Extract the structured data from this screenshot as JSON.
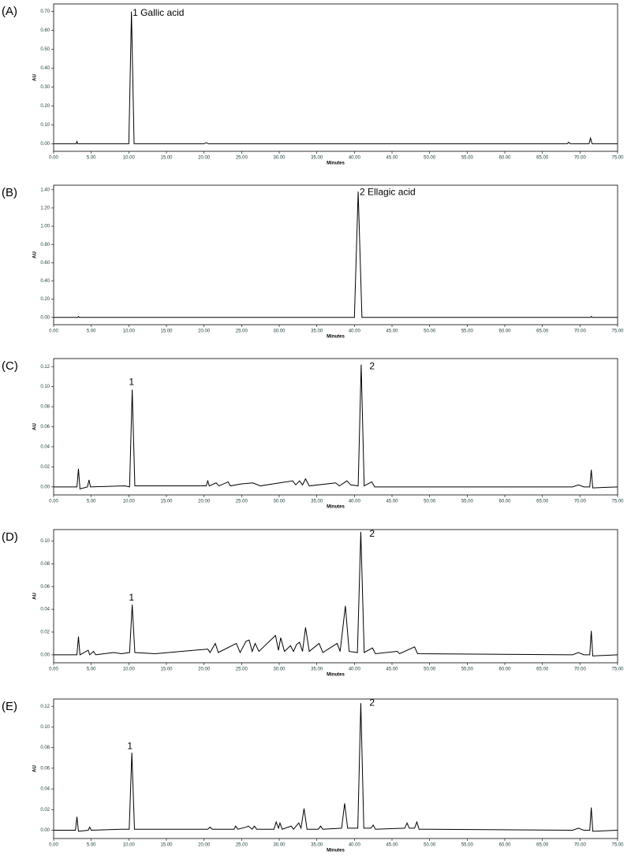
{
  "chart_data": [
    {
      "type": "line",
      "label": "(A)",
      "x_label": "Minutes",
      "y_label": "AU",
      "color": "#000000",
      "xlim": [
        0,
        75
      ],
      "ylim": [
        -0.04,
        0.74
      ],
      "xticks": [
        {
          "value": 0,
          "label": "0.00"
        },
        {
          "value": 5,
          "label": "5.00"
        },
        {
          "value": 10,
          "label": "10.00"
        },
        {
          "value": 15,
          "label": "15.00"
        },
        {
          "value": 20,
          "label": "20.00"
        },
        {
          "value": 25,
          "label": "25.00"
        },
        {
          "value": 30,
          "label": "30.00"
        },
        {
          "value": 35,
          "label": "35.00"
        },
        {
          "value": 40,
          "label": "40.00"
        },
        {
          "value": 45,
          "label": "45.00"
        },
        {
          "value": 50,
          "label": "50.00"
        },
        {
          "value": 55,
          "label": "55.00"
        },
        {
          "value": 60,
          "label": "60.00"
        },
        {
          "value": 65,
          "label": "65.00"
        },
        {
          "value": 70,
          "label": "70.00"
        },
        {
          "value": 75,
          "label": "75.00"
        }
      ],
      "yticks": [
        {
          "value": 0,
          "label": "0.00"
        },
        {
          "value": 0.1,
          "label": "0.10"
        },
        {
          "value": 0.2,
          "label": "0.20"
        },
        {
          "value": 0.3,
          "label": "0.30"
        },
        {
          "value": 0.4,
          "label": "0.40"
        },
        {
          "value": 0.5,
          "label": "0.50"
        },
        {
          "value": 0.6,
          "label": "0.60"
        },
        {
          "value": 0.7,
          "label": "0.70"
        }
      ],
      "x": [
        0,
        3.0,
        3.1,
        3.2,
        10.0,
        10.35,
        10.7,
        20.0,
        20.3,
        20.6,
        68.3,
        68.5,
        68.7,
        71.2,
        71.4,
        71.6,
        75
      ],
      "values": [
        0,
        0,
        0.012,
        0,
        0,
        0.7,
        0,
        0,
        0.005,
        0,
        0,
        0.008,
        0,
        0,
        0.03,
        0,
        0
      ],
      "annotations": [
        {
          "text": "1 Gallic acid",
          "x": 10.5,
          "y": 0.69
        }
      ]
    },
    {
      "type": "line",
      "label": "(B)",
      "x_label": "Minutes",
      "y_label": "AU",
      "color": "#000000",
      "xlim": [
        0,
        75
      ],
      "ylim": [
        -0.08,
        1.45
      ],
      "xticks": [
        {
          "value": 0,
          "label": "0.00"
        },
        {
          "value": 5,
          "label": "5.00"
        },
        {
          "value": 10,
          "label": "10.00"
        },
        {
          "value": 15,
          "label": "15.00"
        },
        {
          "value": 20,
          "label": "20.00"
        },
        {
          "value": 25,
          "label": "25.00"
        },
        {
          "value": 30,
          "label": "30.00"
        },
        {
          "value": 35,
          "label": "35.00"
        },
        {
          "value": 40,
          "label": "40.00"
        },
        {
          "value": 45,
          "label": "45.00"
        },
        {
          "value": 50,
          "label": "50.00"
        },
        {
          "value": 55,
          "label": "55.00"
        },
        {
          "value": 60,
          "label": "60.00"
        },
        {
          "value": 65,
          "label": "65.00"
        },
        {
          "value": 70,
          "label": "70.00"
        },
        {
          "value": 75,
          "label": "75.00"
        }
      ],
      "yticks": [
        {
          "value": 0,
          "label": "0.00"
        },
        {
          "value": 0.2,
          "label": "0.20"
        },
        {
          "value": 0.4,
          "label": "0.40"
        },
        {
          "value": 0.6,
          "label": "0.60"
        },
        {
          "value": 0.8,
          "label": "0.80"
        },
        {
          "value": 1,
          "label": "1.00"
        },
        {
          "value": 1.2,
          "label": "1.20"
        },
        {
          "value": 1.4,
          "label": "1.40"
        }
      ],
      "x": [
        0,
        3.2,
        3.3,
        3.4,
        40.0,
        40.5,
        41.0,
        71.4,
        71.5,
        71.6,
        75
      ],
      "values": [
        0,
        0,
        0.01,
        0,
        0,
        1.38,
        0,
        0,
        0.01,
        0,
        0
      ],
      "annotations": [
        {
          "text": "2 Ellagic acid",
          "x": 40.7,
          "y": 1.37
        }
      ]
    },
    {
      "type": "line",
      "label": "(C)",
      "x_label": "Minutes",
      "y_label": "AU",
      "color": "#000000",
      "xlim": [
        0,
        75
      ],
      "ylim": [
        -0.008,
        0.128
      ],
      "xticks": [
        {
          "value": 0,
          "label": "0.00"
        },
        {
          "value": 5,
          "label": "5.00"
        },
        {
          "value": 10,
          "label": "10.00"
        },
        {
          "value": 15,
          "label": "15.00"
        },
        {
          "value": 20,
          "label": "20.00"
        },
        {
          "value": 25,
          "label": "25.00"
        },
        {
          "value": 30,
          "label": "30.00"
        },
        {
          "value": 35,
          "label": "35.00"
        },
        {
          "value": 40,
          "label": "40.00"
        },
        {
          "value": 45,
          "label": "45.00"
        },
        {
          "value": 50,
          "label": "50.00"
        },
        {
          "value": 55,
          "label": "55.00"
        },
        {
          "value": 60,
          "label": "60.00"
        },
        {
          "value": 65,
          "label": "65.00"
        },
        {
          "value": 70,
          "label": "70.00"
        },
        {
          "value": 75,
          "label": "75.00"
        }
      ],
      "yticks": [
        {
          "value": 0,
          "label": "0.00"
        },
        {
          "value": 0.02,
          "label": "0.02"
        },
        {
          "value": 0.04,
          "label": "0.04"
        },
        {
          "value": 0.06,
          "label": "0.06"
        },
        {
          "value": 0.08,
          "label": "0.08"
        },
        {
          "value": 0.1,
          "label": "0.10"
        },
        {
          "value": 0.12,
          "label": "0.12"
        }
      ],
      "x": [
        0,
        3.1,
        3.3,
        3.5,
        4.5,
        4.7,
        4.9,
        9.5,
        10.1,
        10.45,
        10.8,
        20.3,
        20.5,
        20.7,
        21.6,
        22,
        23.2,
        23.5,
        25,
        26.5,
        27.5,
        29.2,
        31.8,
        32.2,
        32.7,
        33.1,
        33.5,
        34,
        37.5,
        38,
        39,
        39.5,
        40.5,
        40.9,
        41.3,
        42.3,
        42.7,
        69,
        69.8,
        70.5,
        71.3,
        71.5,
        71.7,
        75
      ],
      "values": [
        0,
        0,
        0.018,
        -0.002,
        0,
        0.007,
        0,
        0.001,
        0,
        0.097,
        0.001,
        0.001,
        0.006,
        0.001,
        0.004,
        0.001,
        0.005,
        0.001,
        0.003,
        0.004,
        0.001,
        0.003,
        0.006,
        0.002,
        0.006,
        0.002,
        0.008,
        0.001,
        0.004,
        0.001,
        0.006,
        0.002,
        0.001,
        0.122,
        0.001,
        0.005,
        0,
        0,
        0.002,
        0,
        0,
        0.017,
        -0.001,
        0
      ],
      "annotations": [
        {
          "text": "1",
          "x": 10.0,
          "y": 0.104
        },
        {
          "text": "2",
          "x": 42.0,
          "y": 0.12
        }
      ]
    },
    {
      "type": "line",
      "label": "(D)",
      "x_label": "Minutes",
      "y_label": "AU",
      "color": "#000000",
      "xlim": [
        0,
        75
      ],
      "ylim": [
        -0.007,
        0.11
      ],
      "xticks": [
        {
          "value": 0,
          "label": "0.00"
        },
        {
          "value": 5,
          "label": "5.00"
        },
        {
          "value": 10,
          "label": "10.00"
        },
        {
          "value": 15,
          "label": "15.00"
        },
        {
          "value": 20,
          "label": "20.00"
        },
        {
          "value": 25,
          "label": "25.00"
        },
        {
          "value": 30,
          "label": "30.00"
        },
        {
          "value": 35,
          "label": "35.00"
        },
        {
          "value": 40,
          "label": "40.00"
        },
        {
          "value": 45,
          "label": "45.00"
        },
        {
          "value": 50,
          "label": "50.00"
        },
        {
          "value": 55,
          "label": "55.00"
        },
        {
          "value": 60,
          "label": "60.00"
        },
        {
          "value": 65,
          "label": "65.00"
        },
        {
          "value": 70,
          "label": "70.00"
        },
        {
          "value": 75,
          "label": "75.00"
        }
      ],
      "yticks": [
        {
          "value": 0,
          "label": "0.00"
        },
        {
          "value": 0.02,
          "label": "0.02"
        },
        {
          "value": 0.04,
          "label": "0.04"
        },
        {
          "value": 0.06,
          "label": "0.06"
        },
        {
          "value": 0.08,
          "label": "0.08"
        },
        {
          "value": 0.1,
          "label": "0.10"
        }
      ],
      "x": [
        0,
        3.1,
        3.3,
        3.5,
        4.6,
        4.8,
        5.3,
        5.6,
        8,
        9,
        10.1,
        10.45,
        10.8,
        13.5,
        20.5,
        20.8,
        21.5,
        21.9,
        24.3,
        24.8,
        25.6,
        26,
        26.4,
        26.8,
        27.3,
        29.5,
        29.9,
        30.2,
        30.7,
        31.5,
        31.9,
        32.3,
        32.7,
        33.1,
        33.5,
        34,
        35.3,
        35.8,
        37.7,
        38.1,
        38.8,
        39.3,
        40.4,
        40.85,
        41.3,
        42.4,
        42.8,
        45.7,
        46,
        48,
        48.4,
        69,
        69.8,
        70.5,
        71.3,
        71.5,
        71.7,
        75
      ],
      "values": [
        0,
        0,
        0.016,
        0,
        0.004,
        0,
        0.003,
        0,
        0.002,
        0.001,
        0.002,
        0.044,
        0.002,
        0.001,
        0.005,
        0.002,
        0.01,
        0.002,
        0.01,
        0.002,
        0.012,
        0.013,
        0.003,
        0.01,
        0.003,
        0.017,
        0.004,
        0.015,
        0.003,
        0.008,
        0.003,
        0.009,
        0.011,
        0.003,
        0.024,
        0.003,
        0.01,
        0.002,
        0.01,
        0.003,
        0.043,
        0.003,
        0.002,
        0.108,
        0.002,
        0.006,
        0.001,
        0.003,
        0.001,
        0.007,
        0.001,
        0,
        0.002,
        0,
        0,
        0.021,
        -0.001,
        0
      ],
      "annotations": [
        {
          "text": "1",
          "x": 10.0,
          "y": 0.05
        },
        {
          "text": "2",
          "x": 42.0,
          "y": 0.106
        }
      ]
    },
    {
      "type": "line",
      "label": "(E)",
      "x_label": "Minutes",
      "y_label": "AU",
      "color": "#000000",
      "xlim": [
        0,
        75
      ],
      "ylim": [
        -0.008,
        0.127
      ],
      "xticks": [
        {
          "value": 0,
          "label": "0.00"
        },
        {
          "value": 5,
          "label": "5.00"
        },
        {
          "value": 10,
          "label": "10.00"
        },
        {
          "value": 15,
          "label": "15.00"
        },
        {
          "value": 20,
          "label": "20.00"
        },
        {
          "value": 25,
          "label": "25.00"
        },
        {
          "value": 30,
          "label": "30.00"
        },
        {
          "value": 35,
          "label": "35.00"
        },
        {
          "value": 40,
          "label": "40.00"
        },
        {
          "value": 45,
          "label": "45.00"
        },
        {
          "value": 50,
          "label": "50.00"
        },
        {
          "value": 55,
          "label": "55.00"
        },
        {
          "value": 60,
          "label": "60.00"
        },
        {
          "value": 65,
          "label": "65.00"
        },
        {
          "value": 70,
          "label": "70.00"
        },
        {
          "value": 75,
          "label": "75.00"
        }
      ],
      "yticks": [
        {
          "value": 0,
          "label": "0.00"
        },
        {
          "value": 0.02,
          "label": "0.02"
        },
        {
          "value": 0.04,
          "label": "0.04"
        },
        {
          "value": 0.06,
          "label": "0.06"
        },
        {
          "value": 0.08,
          "label": "0.08"
        },
        {
          "value": 0.1,
          "label": "0.10"
        },
        {
          "value": 0.12,
          "label": "0.12"
        }
      ],
      "x": [
        0,
        2.9,
        3.1,
        3.3,
        4.6,
        4.8,
        5.0,
        9,
        10.05,
        10.4,
        10.75,
        20.5,
        20.8,
        21.1,
        24,
        24.2,
        24.5,
        25.6,
        25.9,
        26.4,
        26.7,
        27,
        29.3,
        29.6,
        29.9,
        30.1,
        30.4,
        31.6,
        31.9,
        32.6,
        32.9,
        33.3,
        33.7,
        35.2,
        35.5,
        35.8,
        38.3,
        38.7,
        39.1,
        40.45,
        40.85,
        41.25,
        42.2,
        42.5,
        42.8,
        46.7,
        47,
        47.3,
        48.0,
        48.3,
        48.6,
        50,
        69,
        69.8,
        70.5,
        71.3,
        71.5,
        71.7,
        75
      ],
      "values": [
        0,
        0,
        0.013,
        -0.001,
        0,
        0.003,
        0,
        0.001,
        0.001,
        0.075,
        0.001,
        0.001,
        0.003,
        0.001,
        0.001,
        0.004,
        0.001,
        0.003,
        0.004,
        0.001,
        0.004,
        0.001,
        0.001,
        0.008,
        0.002,
        0.007,
        0.001,
        0.004,
        0.001,
        0.007,
        0.002,
        0.021,
        0.001,
        0.001,
        0.004,
        0.001,
        0.002,
        0.026,
        0.002,
        0.002,
        0.123,
        0.002,
        0.002,
        0.005,
        0.001,
        0.002,
        0.007,
        0.002,
        0.002,
        0.008,
        0.001,
        0.001,
        0,
        0.002,
        0,
        0,
        0.022,
        -0.001,
        0
      ],
      "annotations": [
        {
          "text": "1",
          "x": 9.8,
          "y": 0.081
        },
        {
          "text": "2",
          "x": 42.0,
          "y": 0.123
        }
      ]
    }
  ]
}
